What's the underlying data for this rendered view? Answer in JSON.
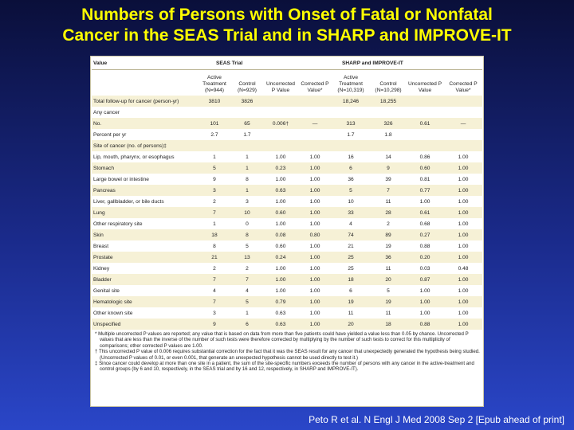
{
  "slide": {
    "title_line1": "Numbers of Persons with Onset of Fatal or Nonfatal",
    "title_line2": "Cancer in the SEAS Trial and in SHARP and IMPROVE-IT",
    "citation": "Peto R et al. N Engl J Med 2008 Sep 2 [Epub ahead of print]"
  },
  "table": {
    "value_header": "Value",
    "group_seas": "SEAS Trial",
    "group_sharp": "SHARP and IMPROVE-IT",
    "columns": {
      "seas_active": "Active Treatment (N=944)",
      "seas_control": "Control (N=929)",
      "seas_uncorr": "Uncorrected P Value",
      "seas_corr": "Corrected P Value*",
      "sharp_active": "Active Treatment (N=10,319)",
      "sharp_control": "Control (N=10,298)",
      "sharp_uncorr": "Uncorrected P Value",
      "sharp_corr": "Corrected P Value*"
    },
    "rows": [
      {
        "label": "Total follow-up for cancer (person-yr)",
        "cells": [
          "3810",
          "3826",
          "",
          "",
          "18,246",
          "18,255",
          "",
          ""
        ]
      },
      {
        "label": "Any cancer",
        "cells": [
          "",
          "",
          "",
          "",
          "",
          "",
          "",
          ""
        ]
      },
      {
        "label": "No.",
        "cells": [
          "101",
          "65",
          "0.006†",
          "—",
          "313",
          "326",
          "0.61",
          "—"
        ]
      },
      {
        "label": "Percent per yr",
        "cells": [
          "2.7",
          "1.7",
          "",
          "",
          "1.7",
          "1.8",
          "",
          ""
        ]
      },
      {
        "label": "Site of cancer (no. of persons)‡",
        "cells": [
          "",
          "",
          "",
          "",
          "",
          "",
          "",
          ""
        ]
      },
      {
        "label": "Lip, mouth, pharynx, or esophagus",
        "cells": [
          "1",
          "1",
          "1.00",
          "1.00",
          "16",
          "14",
          "0.86",
          "1.00"
        ]
      },
      {
        "label": "Stomach",
        "cells": [
          "5",
          "1",
          "0.23",
          "1.00",
          "6",
          "9",
          "0.60",
          "1.00"
        ]
      },
      {
        "label": "Large bowel or intestine",
        "cells": [
          "9",
          "8",
          "1.00",
          "1.00",
          "36",
          "39",
          "0.81",
          "1.00"
        ]
      },
      {
        "label": "Pancreas",
        "cells": [
          "3",
          "1",
          "0.63",
          "1.00",
          "5",
          "7",
          "0.77",
          "1.00"
        ]
      },
      {
        "label": "Liver, gallbladder, or bile ducts",
        "cells": [
          "2",
          "3",
          "1.00",
          "1.00",
          "10",
          "11",
          "1.00",
          "1.00"
        ]
      },
      {
        "label": "Lung",
        "cells": [
          "7",
          "10",
          "0.60",
          "1.00",
          "33",
          "28",
          "0.61",
          "1.00"
        ]
      },
      {
        "label": "Other respiratory site",
        "cells": [
          "1",
          "0",
          "1.00",
          "1.00",
          "4",
          "2",
          "0.68",
          "1.00"
        ]
      },
      {
        "label": "Skin",
        "cells": [
          "18",
          "8",
          "0.08",
          "0.80",
          "74",
          "89",
          "0.27",
          "1.00"
        ]
      },
      {
        "label": "Breast",
        "cells": [
          "8",
          "5",
          "0.60",
          "1.00",
          "21",
          "19",
          "0.88",
          "1.00"
        ]
      },
      {
        "label": "Prostate",
        "cells": [
          "21",
          "13",
          "0.24",
          "1.00",
          "25",
          "36",
          "0.20",
          "1.00"
        ]
      },
      {
        "label": "Kidney",
        "cells": [
          "2",
          "2",
          "1.00",
          "1.00",
          "25",
          "11",
          "0.03",
          "0.48"
        ]
      },
      {
        "label": "Bladder",
        "cells": [
          "7",
          "7",
          "1.00",
          "1.00",
          "18",
          "20",
          "0.87",
          "1.00"
        ]
      },
      {
        "label": "Genital site",
        "cells": [
          "4",
          "4",
          "1.00",
          "1.00",
          "6",
          "5",
          "1.00",
          "1.00"
        ]
      },
      {
        "label": "Hematologic site",
        "cells": [
          "7",
          "5",
          "0.79",
          "1.00",
          "19",
          "19",
          "1.00",
          "1.00"
        ]
      },
      {
        "label": "Other known site",
        "cells": [
          "3",
          "1",
          "0.63",
          "1.00",
          "11",
          "11",
          "1.00",
          "1.00"
        ]
      },
      {
        "label": "Unspecified",
        "cells": [
          "9",
          "6",
          "0.63",
          "1.00",
          "20",
          "18",
          "0.88",
          "1.00"
        ]
      }
    ]
  },
  "footnotes": [
    "* Multiple uncorrected P values are reported; any value that is based on data from more than five patients could have yielded a value less than 0.05 by chance. Uncorrected P values that are less than the inverse of the number of such tests were therefore corrected by multiplying by the number of such tests to correct for this multiplicity of comparisons; other corrected P values are 1.00.",
    "† This uncorrected P value of 0.006 requires substantial correction for the fact that it was the SEAS result for any cancer that unexpectedly generated the hypothesis being studied. (Uncorrected P values of 0.01, or even 0.001, that generate an unexpected hypothesis cannot be used directly to test it.)",
    "‡ Since cancer could develop at more than one site in a patient, the sum of the site-specific numbers exceeds the number of persons with any cancer in the active-treatment and control groups (by 6 and 10, respectively, in the SEAS trial and by 16 and 12, respectively, in SHARP and IMPROVE-IT)."
  ]
}
